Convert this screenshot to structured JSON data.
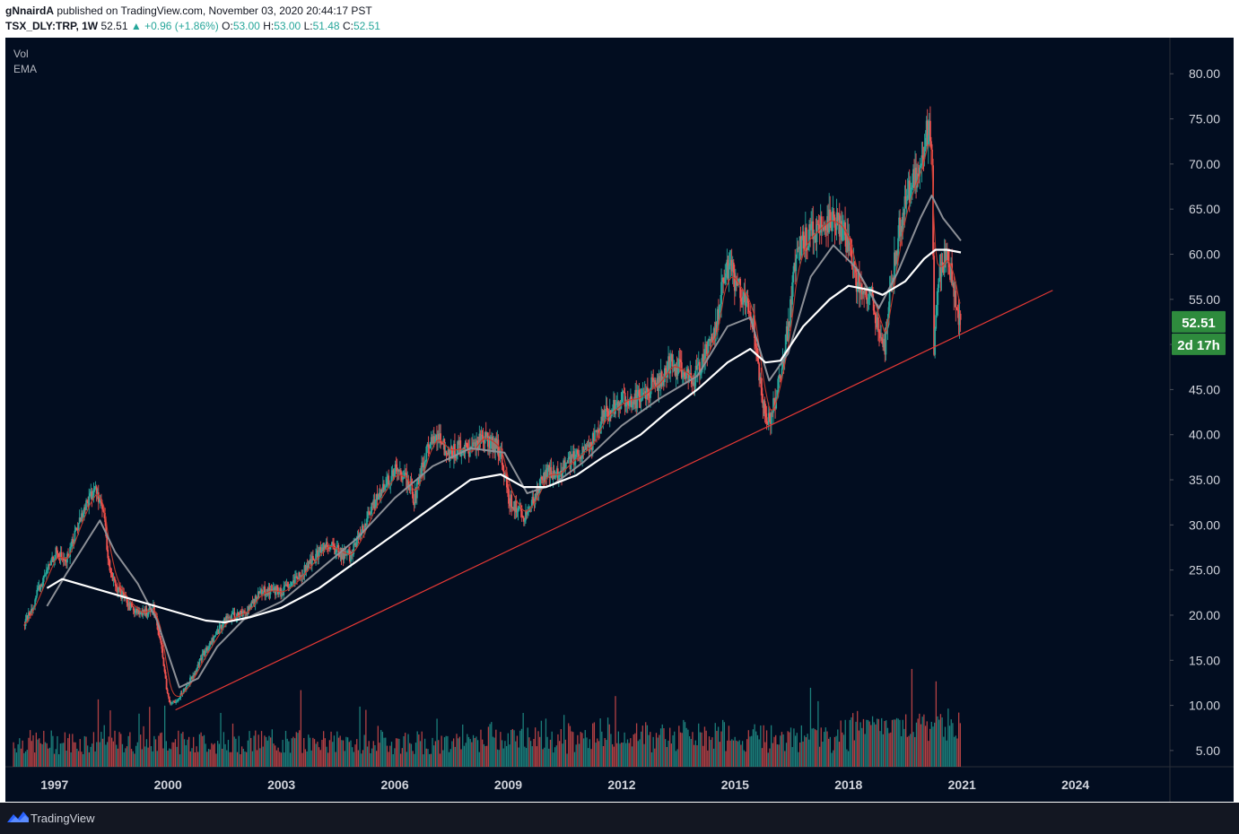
{
  "header": {
    "publisher": "gNnairdA",
    "published_text": " published on TradingView.com, November 03, 2020 20:44:17 PST",
    "symbol": "TSX_DLY:TRP",
    "interval": ", 1W",
    "last": "52.51",
    "change": "▲ +0.96 (+1.86%)",
    "open_label": "O:",
    "open": "53.00",
    "high_label": "H:",
    "high": "53.00",
    "low_label": "L:",
    "low": "51.48",
    "close_label": "C:",
    "close": "52.51"
  },
  "legend": {
    "vol": "Vol",
    "ema": "EMA"
  },
  "footer": {
    "brand": "TradingView"
  },
  "colors": {
    "background": "#020d20",
    "trendline": "#e53935",
    "up": "#26a69a",
    "down": "#ef5350",
    "price_tag": "#2e8b3d",
    "ema_long": "#ffffff",
    "ema_mid": "#8c8f96"
  },
  "chart_data": {
    "type": "candlestick",
    "title": "TSX_DLY:TRP, 1W",
    "x_axis": {
      "labels": [
        "1997",
        "2000",
        "2003",
        "2006",
        "2009",
        "2012",
        "2015",
        "2018",
        "2021",
        "2024"
      ],
      "range": [
        1995.7,
        2026.5
      ]
    },
    "y_axis": {
      "labels": [
        "5.00",
        "10.00",
        "15.00",
        "20.00",
        "25.00",
        "30.00",
        "35.00",
        "40.00",
        "45.00",
        "50.00",
        "55.00",
        "60.00",
        "65.00",
        "70.00",
        "75.00",
        "80.00"
      ],
      "range": [
        3.2,
        84
      ]
    },
    "last_price_tag": "52.51",
    "countdown_tag": "2d 17h",
    "price_series": [
      [
        1996.2,
        19
      ],
      [
        1996.5,
        22
      ],
      [
        1996.8,
        25
      ],
      [
        1997.0,
        27
      ],
      [
        1997.3,
        26
      ],
      [
        1997.6,
        30
      ],
      [
        1997.9,
        33
      ],
      [
        1998.1,
        34
      ],
      [
        1998.3,
        31
      ],
      [
        1998.4,
        26
      ],
      [
        1998.6,
        23
      ],
      [
        1998.8,
        22
      ],
      [
        1999.0,
        21
      ],
      [
        1999.3,
        20
      ],
      [
        1999.6,
        21
      ],
      [
        1999.8,
        17
      ],
      [
        1999.95,
        12
      ],
      [
        2000.05,
        10
      ],
      [
        2000.3,
        11
      ],
      [
        2000.6,
        13
      ],
      [
        2000.9,
        15.5
      ],
      [
        2001.2,
        17.5
      ],
      [
        2001.5,
        19.5
      ],
      [
        2001.8,
        20
      ],
      [
        2002.1,
        20.5
      ],
      [
        2002.4,
        22.5
      ],
      [
        2002.7,
        22.8
      ],
      [
        2003.0,
        22.5
      ],
      [
        2003.3,
        23.5
      ],
      [
        2003.6,
        25
      ],
      [
        2003.9,
        26.5
      ],
      [
        2004.2,
        28
      ],
      [
        2004.5,
        27
      ],
      [
        2004.8,
        26.5
      ],
      [
        2005.1,
        29
      ],
      [
        2005.4,
        32
      ],
      [
        2005.7,
        34
      ],
      [
        2006.0,
        36
      ],
      [
        2006.3,
        35
      ],
      [
        2006.5,
        33
      ],
      [
        2006.7,
        36
      ],
      [
        2006.9,
        39
      ],
      [
        2007.1,
        40
      ],
      [
        2007.4,
        38
      ],
      [
        2007.7,
        38.5
      ],
      [
        2008.0,
        38
      ],
      [
        2008.3,
        40
      ],
      [
        2008.6,
        39
      ],
      [
        2008.8,
        38
      ],
      [
        2009.0,
        33
      ],
      [
        2009.2,
        32
      ],
      [
        2009.4,
        31
      ],
      [
        2009.7,
        33
      ],
      [
        2010.0,
        36
      ],
      [
        2010.3,
        35.5
      ],
      [
        2010.6,
        37
      ],
      [
        2010.9,
        38
      ],
      [
        2011.2,
        39
      ],
      [
        2011.5,
        42
      ],
      [
        2011.8,
        43
      ],
      [
        2012.1,
        44
      ],
      [
        2012.4,
        44
      ],
      [
        2012.7,
        45
      ],
      [
        2013.0,
        46
      ],
      [
        2013.3,
        48
      ],
      [
        2013.6,
        47
      ],
      [
        2013.9,
        46
      ],
      [
        2014.2,
        49
      ],
      [
        2014.5,
        52
      ],
      [
        2014.7,
        58
      ],
      [
        2014.9,
        58
      ],
      [
        2015.1,
        56
      ],
      [
        2015.3,
        55
      ],
      [
        2015.5,
        52
      ],
      [
        2015.7,
        44
      ],
      [
        2015.9,
        41
      ],
      [
        2016.1,
        45
      ],
      [
        2016.4,
        52
      ],
      [
        2016.6,
        60
      ],
      [
        2016.9,
        62
      ],
      [
        2017.2,
        63
      ],
      [
        2017.5,
        64
      ],
      [
        2017.8,
        63
      ],
      [
        2018.0,
        61
      ],
      [
        2018.2,
        57
      ],
      [
        2018.4,
        56
      ],
      [
        2018.6,
        55
      ],
      [
        2018.8,
        52
      ],
      [
        2018.95,
        50
      ],
      [
        2019.1,
        56
      ],
      [
        2019.3,
        62
      ],
      [
        2019.5,
        66
      ],
      [
        2019.7,
        68
      ],
      [
        2019.9,
        70
      ],
      [
        2020.1,
        74
      ],
      [
        2020.2,
        70
      ],
      [
        2020.25,
        50
      ],
      [
        2020.4,
        58
      ],
      [
        2020.6,
        60
      ],
      [
        2020.8,
        56
      ],
      [
        2020.9,
        53
      ],
      [
        2020.97,
        52.51
      ]
    ],
    "ema_long": [
      [
        1996.8,
        23
      ],
      [
        1997.2,
        24
      ],
      [
        2000.5,
        20
      ],
      [
        2001.0,
        19.4
      ],
      [
        2001.5,
        19.2
      ],
      [
        2002.2,
        19.8
      ],
      [
        2003.0,
        20.8
      ],
      [
        2004.0,
        23
      ],
      [
        2005.0,
        26
      ],
      [
        2006.0,
        29
      ],
      [
        2007.0,
        32
      ],
      [
        2008.0,
        35
      ],
      [
        2008.8,
        35.6
      ],
      [
        2009.4,
        34.2
      ],
      [
        2010.0,
        34.2
      ],
      [
        2010.8,
        35.5
      ],
      [
        2011.5,
        37.5
      ],
      [
        2012.5,
        40
      ],
      [
        2013.2,
        42.5
      ],
      [
        2014.0,
        45
      ],
      [
        2014.8,
        48
      ],
      [
        2015.4,
        49.5
      ],
      [
        2015.8,
        48
      ],
      [
        2016.2,
        48.2
      ],
      [
        2016.8,
        52
      ],
      [
        2017.5,
        55
      ],
      [
        2018.0,
        56.5
      ],
      [
        2018.6,
        56
      ],
      [
        2018.9,
        55.5
      ],
      [
        2019.5,
        57
      ],
      [
        2020.0,
        59.5
      ],
      [
        2020.3,
        60.5
      ],
      [
        2020.6,
        60.5
      ],
      [
        2020.97,
        60.2
      ]
    ],
    "ema_mid": [
      [
        1996.8,
        21
      ],
      [
        1997.3,
        24.5
      ],
      [
        1997.9,
        28.5
      ],
      [
        1998.2,
        30.5
      ],
      [
        1998.6,
        27
      ],
      [
        1999.2,
        23.5
      ],
      [
        1999.7,
        19.5
      ],
      [
        2000.3,
        12
      ],
      [
        2000.8,
        13
      ],
      [
        2001.3,
        16.5
      ],
      [
        2002.0,
        19.5
      ],
      [
        2003.0,
        21.5
      ],
      [
        2004.0,
        25
      ],
      [
        2005.0,
        28.5
      ],
      [
        2006.0,
        33
      ],
      [
        2007.0,
        36.5
      ],
      [
        2008.0,
        38.5
      ],
      [
        2008.9,
        38
      ],
      [
        2009.5,
        33.5
      ],
      [
        2010.2,
        34.5
      ],
      [
        2011.0,
        37
      ],
      [
        2012.0,
        41
      ],
      [
        2013.0,
        44
      ],
      [
        2014.0,
        46.5
      ],
      [
        2014.8,
        52
      ],
      [
        2015.4,
        53
      ],
      [
        2015.9,
        46
      ],
      [
        2016.4,
        49
      ],
      [
        2017.0,
        57.5
      ],
      [
        2017.6,
        61
      ],
      [
        2018.2,
        58.5
      ],
      [
        2018.8,
        54
      ],
      [
        2019.3,
        58
      ],
      [
        2019.9,
        64
      ],
      [
        2020.2,
        66.5
      ],
      [
        2020.5,
        64
      ],
      [
        2020.97,
        61.5
      ]
    ],
    "trendline": [
      [
        2000.2,
        9.5
      ],
      [
        2023.4,
        56
      ]
    ],
    "volume_range": [
      0,
      25
    ],
    "volume_notes": "Weekly volume histogram along the bottom, largest spikes near 2020"
  }
}
